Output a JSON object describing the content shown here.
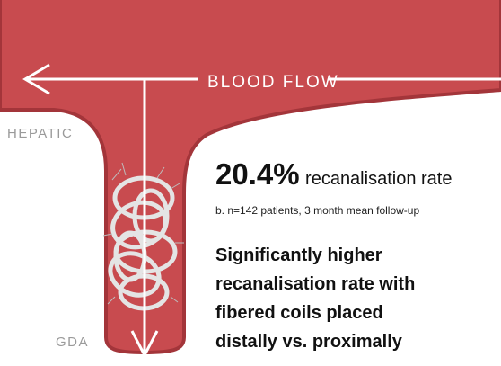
{
  "diagram": {
    "flow_label": "BLOOD FLOW",
    "branches": {
      "upper": "HEPATIC",
      "lower": "GDA"
    }
  },
  "stat": {
    "value": "20.4%",
    "label": "recanalisation rate",
    "note": "b. n=142 patients, 3 month mean follow-up"
  },
  "conclusion": {
    "lines": [
      "Significantly higher",
      "recanalisation rate with",
      "fibered coils placed",
      "distally vs. proximally"
    ]
  }
}
